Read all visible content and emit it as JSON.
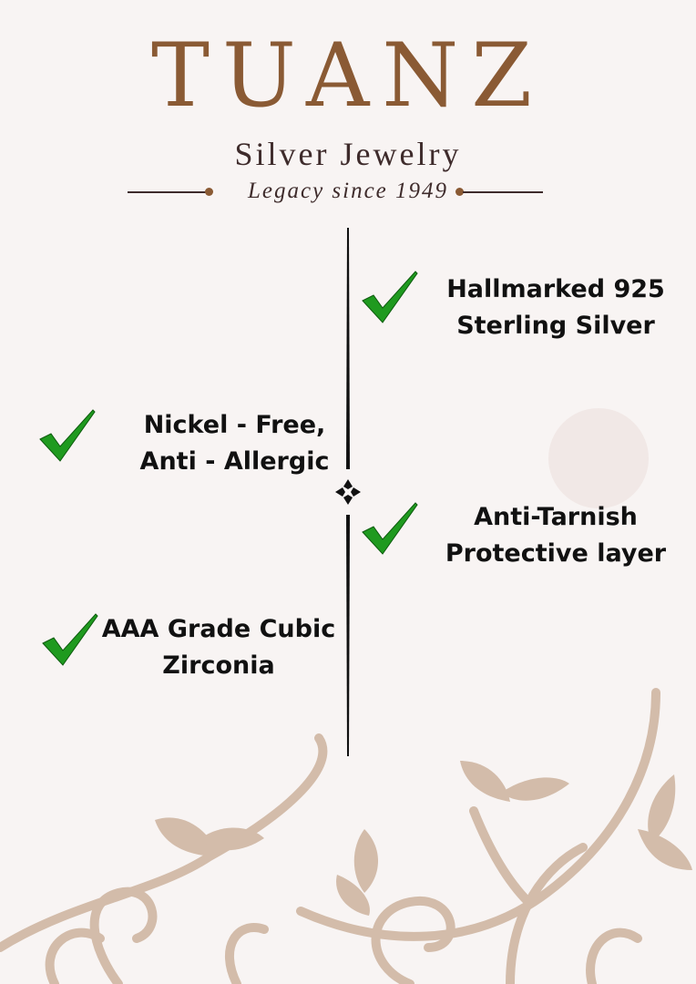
{
  "brand": {
    "name": "TUANZ",
    "subtitle": "Silver Jewelry",
    "tagline": "Legacy since 1949"
  },
  "colors": {
    "brand": "#8a5a34",
    "text": "#3e2b2b",
    "check": "#1f9a1f",
    "vine": "#d3bcaa",
    "background": "#f8f4f3"
  },
  "features": [
    {
      "line1": "Hallmarked 925",
      "line2": "Sterling Silver",
      "icon": "check-icon"
    },
    {
      "line1": "Nickel - Free,",
      "line2": "Anti - Allergic",
      "icon": "check-icon"
    },
    {
      "line1": "Anti-Tarnish",
      "line2": "Protective layer",
      "icon": "check-icon"
    },
    {
      "line1": "AAA Grade Cubic",
      "line2": "Zirconia",
      "icon": "check-icon"
    }
  ]
}
